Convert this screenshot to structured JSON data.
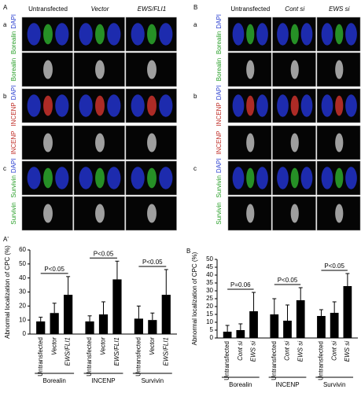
{
  "panels": [
    {
      "label": "A",
      "columns": [
        "Untransfected",
        "Vector",
        "EWS/FLI1"
      ],
      "rows": [
        {
          "label": "a",
          "stains": [
            [
              {
                "text": "Borealin",
                "color": "#2aa02a"
              },
              {
                "text": "DAPI",
                "color": "#2a3fd0"
              }
            ],
            [
              {
                "text": "Borealin",
                "color": "#2aa02a"
              }
            ]
          ]
        },
        {
          "label": "b",
          "stains": [
            [
              {
                "text": "INCENP",
                "color": "#c0302a"
              },
              {
                "text": "DAPI",
                "color": "#2a3fd0"
              }
            ],
            [
              {
                "text": "INCENP",
                "color": "#c0302a"
              }
            ]
          ]
        },
        {
          "label": "c",
          "stains": [
            [
              {
                "text": "Survivin",
                "color": "#2aa02a"
              },
              {
                "text": "DAPI",
                "color": "#2a3fd0"
              }
            ],
            [
              {
                "text": "Survivin",
                "color": "#2aa02a"
              }
            ]
          ]
        }
      ]
    },
    {
      "label": "B",
      "columns": [
        "Untransfected",
        "Cont si",
        "EWS si"
      ],
      "rows": [
        {
          "label": "a",
          "stains": [
            [
              {
                "text": "Borealin",
                "color": "#2aa02a"
              },
              {
                "text": "DAPI",
                "color": "#2a3fd0"
              }
            ],
            [
              {
                "text": "Borealin",
                "color": "#2aa02a"
              }
            ]
          ]
        },
        {
          "label": "b",
          "stains": [
            [
              {
                "text": "INCENP",
                "color": "#c0302a"
              },
              {
                "text": "DAPI",
                "color": "#2a3fd0"
              }
            ],
            [
              {
                "text": "INCENP",
                "color": "#c0302a"
              }
            ]
          ]
        },
        {
          "label": "c",
          "stains": [
            [
              {
                "text": "Survivin",
                "color": "#2aa02a"
              },
              {
                "text": "DAPI",
                "color": "#2a3fd0"
              }
            ],
            [
              {
                "text": "Survivin",
                "color": "#2aa02a"
              }
            ]
          ]
        }
      ]
    }
  ],
  "chart_data": [
    {
      "type": "bar",
      "panel_label": "A'",
      "y_label": "Abnormal localization of CPC (%)",
      "color": "#000000",
      "categories": [
        "Untransfected",
        "Vector",
        "EWS/FLI1",
        "Untransfected",
        "Vector",
        "EWS/FLI1",
        "Untransfected",
        "Vector",
        "EWS/FLI1"
      ],
      "values": [
        9,
        15,
        28,
        9,
        14,
        39,
        11,
        10,
        28
      ],
      "errors": [
        3,
        7,
        13,
        4,
        9,
        13,
        9,
        5,
        18
      ],
      "groups": [
        {
          "name": "Borealin",
          "annotation": "P<0.05"
        },
        {
          "name": "INCENP",
          "annotation": "P<0.05"
        },
        {
          "name": "Survivin",
          "annotation": "P<0.05"
        }
      ],
      "ylim": [
        0,
        60
      ],
      "yticks": [
        0,
        10,
        20,
        30,
        40,
        50,
        60
      ]
    },
    {
      "type": "bar",
      "panel_label": "B",
      "y_label": "Abnormal localization of CPC (%)",
      "color": "#000000",
      "categories": [
        "Untransfected",
        "Cont si",
        "EWS si",
        "Untransfected",
        "Cont si",
        "EWS si",
        "Untransfected",
        "Cont si",
        "EWS si"
      ],
      "values": [
        4,
        5,
        17,
        15,
        11,
        24,
        14,
        16,
        33
      ],
      "errors": [
        4,
        4,
        12,
        10,
        10,
        8,
        4,
        7,
        8
      ],
      "groups": [
        {
          "name": "Borealin",
          "annotation": "P=0.06"
        },
        {
          "name": "INCENP",
          "annotation": "P<0.05"
        },
        {
          "name": "Survivin",
          "annotation": "P<0.05"
        }
      ],
      "ylim": [
        0,
        50
      ],
      "yticks": [
        0,
        5,
        10,
        15,
        20,
        25,
        30,
        35,
        40,
        45,
        50
      ]
    }
  ]
}
